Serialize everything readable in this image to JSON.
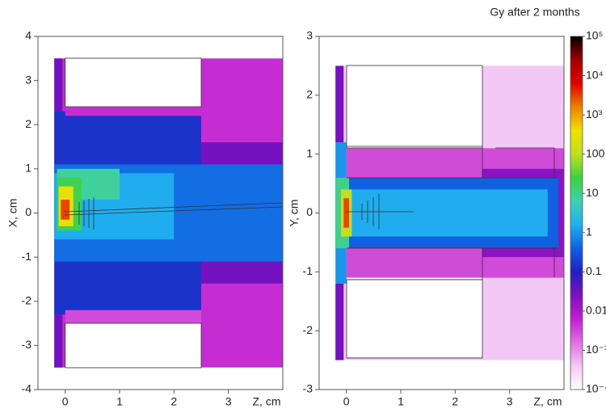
{
  "chart_data": [
    {
      "type": "heatmap",
      "xlabel": "Z, cm",
      "ylabel": "X, cm",
      "xlim": [
        -0.5,
        4
      ],
      "ylim": [
        -4,
        4
      ],
      "xticks": [
        0,
        1,
        2,
        3
      ],
      "yticks": [
        -4,
        -3,
        -2,
        -1,
        0,
        1,
        2,
        3,
        4
      ],
      "cells": [
        {
          "z": [
            -0.2,
            4
          ],
          "x": [
            -3.5,
            3.5
          ],
          "value": 0.005
        },
        {
          "z": [
            2.5,
            4
          ],
          "x": [
            -1.6,
            1.6
          ],
          "value": 0.03
        },
        {
          "z": [
            -0.2,
            2.5
          ],
          "x": [
            -2.3,
            2.3
          ],
          "value": 0.15
        },
        {
          "z": [
            2.5,
            4
          ],
          "x": [
            -0.8,
            0.8
          ],
          "value": 0.12
        },
        {
          "z": [
            -0.2,
            4
          ],
          "x": [
            -1.1,
            1.1
          ],
          "value": 0.5
        },
        {
          "z": [
            -0.2,
            2
          ],
          "x": [
            -0.6,
            0.9
          ],
          "value": 1.5
        },
        {
          "z": [
            -0.15,
            1
          ],
          "x": [
            0.3,
            1
          ],
          "value": 8
        },
        {
          "z": [
            -0.15,
            0.3
          ],
          "x": [
            -0.4,
            0.8
          ],
          "value": 20
        },
        {
          "z": [
            -0.12,
            0.15
          ],
          "x": [
            -0.3,
            0.6
          ],
          "value": 300
        },
        {
          "z": [
            -0.08,
            0.08
          ],
          "x": [
            -0.15,
            0.3
          ],
          "value": 3000
        },
        {
          "z": [
            -0.2,
            -0.05
          ],
          "x": [
            2.3,
            3.5
          ],
          "value": 0.03
        },
        {
          "z": [
            -0.2,
            -0.05
          ],
          "x": [
            -3.5,
            -2.3
          ],
          "value": 0.03
        },
        {
          "z": [
            0,
            2.5
          ],
          "x": [
            2.2,
            2.4
          ],
          "value": 0.005
        },
        {
          "z": [
            0,
            2.5
          ],
          "x": [
            -2.5,
            -2.2
          ],
          "value": 0.003
        },
        {
          "z": [
            0,
            2.5
          ],
          "x": [
            2.4,
            3.5
          ],
          "value": 0.0001
        },
        {
          "z": [
            0,
            2.5
          ],
          "x": [
            -3.5,
            -2.5
          ],
          "value": 0.0001
        }
      ]
    },
    {
      "type": "heatmap",
      "xlabel": "Z, cm",
      "ylabel": "Y, cm",
      "xlim": [
        -0.5,
        4
      ],
      "ylim": [
        -3,
        3
      ],
      "xticks": [
        0,
        1,
        2,
        3
      ],
      "yticks": [
        -3,
        -2,
        -1,
        0,
        1,
        2,
        3
      ],
      "cells": [
        {
          "z": [
            -0.2,
            4
          ],
          "x": [
            -2.5,
            2.5
          ],
          "value": 0.0004
        },
        {
          "z": [
            0,
            4
          ],
          "x": [
            -1.1,
            1.1
          ],
          "value": 0.003
        },
        {
          "z": [
            0,
            2.5
          ],
          "x": [
            1.1,
            2.5
          ],
          "value": 0.0001
        },
        {
          "z": [
            0,
            2.5
          ],
          "x": [
            -2.45,
            -1.1
          ],
          "value": 0.0001
        },
        {
          "z": [
            2.5,
            4
          ],
          "x": [
            -0.75,
            0.75
          ],
          "value": 0.02
        },
        {
          "z": [
            -0.2,
            3.9
          ],
          "x": [
            -0.6,
            0.6
          ],
          "value": 0.4
        },
        {
          "z": [
            0.1,
            3.7
          ],
          "x": [
            -0.4,
            0.4
          ],
          "value": 1.5
        },
        {
          "z": [
            -0.2,
            0
          ],
          "x": [
            -1.2,
            1.2
          ],
          "value": 1
        },
        {
          "z": [
            -0.2,
            0.05
          ],
          "x": [
            -0.6,
            0.6
          ],
          "value": 10
        },
        {
          "z": [
            -0.1,
            0.1
          ],
          "x": [
            -0.4,
            0.4
          ],
          "value": 100
        },
        {
          "z": [
            -0.05,
            0.05
          ],
          "x": [
            -0.25,
            0.25
          ],
          "value": 3000
        },
        {
          "z": [
            -0.2,
            -0.05
          ],
          "x": [
            1.2,
            2.5
          ],
          "value": 0.03
        },
        {
          "z": [
            -0.2,
            -0.05
          ],
          "x": [
            -2.5,
            -1.2
          ],
          "value": 0.03
        }
      ],
      "colorbar": {
        "title": "Gy after 2 months",
        "lim": [
          0.0001,
          100000
        ],
        "log": true,
        "ticks": [
          {
            "value": 100000,
            "label": "10⁵"
          },
          {
            "value": 10000,
            "label": "10⁴"
          },
          {
            "value": 1000,
            "label": "10³"
          },
          100,
          10,
          1,
          0.1,
          0.01,
          {
            "value": 0.001,
            "label": "10⁻³"
          },
          {
            "value": 0.0001,
            "label": "10⁻⁴"
          }
        ],
        "colormap": [
          "#ffffff",
          "#f4c8f4",
          "#e070e0",
          "#c020d0",
          "#8010c0",
          "#2020c0",
          "#1060e0",
          "#20b0f0",
          "#40d0b0",
          "#40d040",
          "#c0e020",
          "#f0e000",
          "#f08000",
          "#e00000",
          "#a00000",
          "#000000"
        ]
      }
    }
  ]
}
